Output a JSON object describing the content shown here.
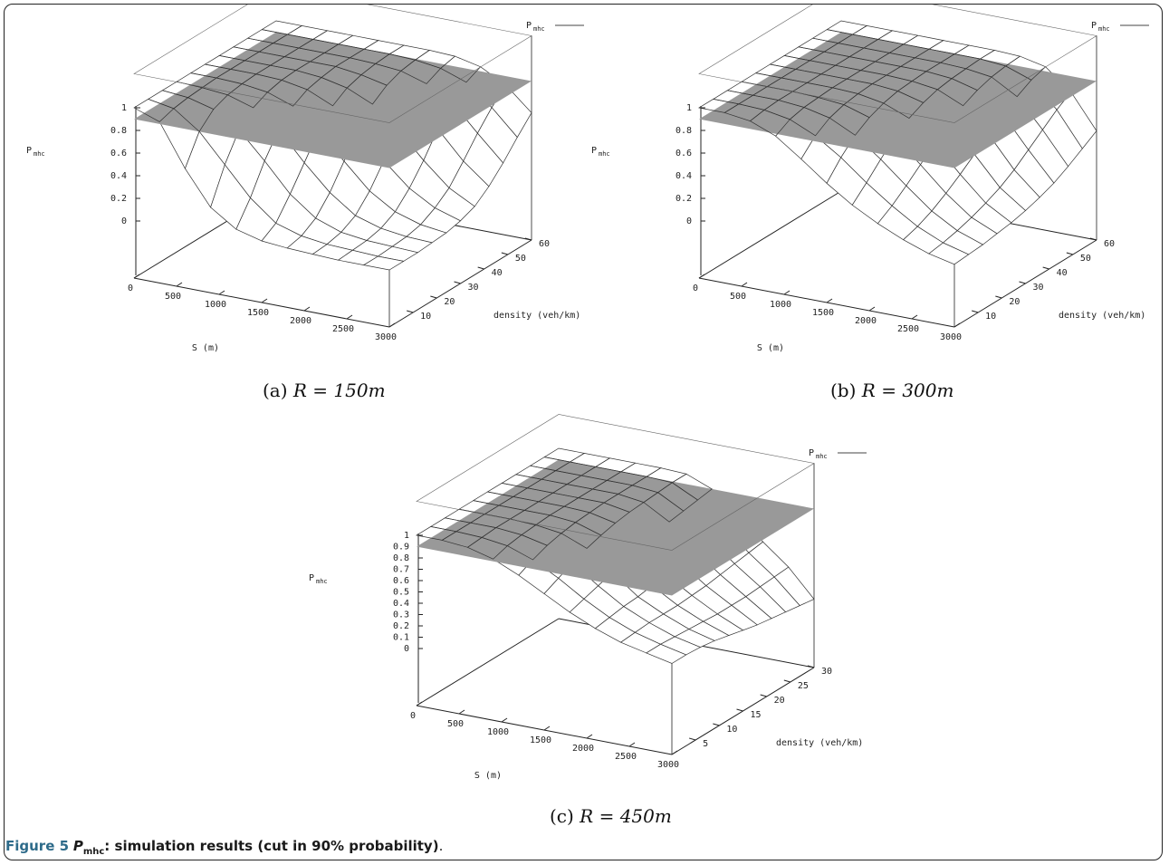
{
  "figure": {
    "label": "Figure 5",
    "symbol": "P",
    "symbol_sub": "mhc",
    "text": ": simulation results (cut in 90% probability)",
    "end": "."
  },
  "chart_data": [
    {
      "type": "surface3d",
      "caption": "(a)",
      "caption_math": "R = 150m",
      "zlabel": "P",
      "zlabel_sub": "mhc",
      "xlabel": "S (m)",
      "ylabel": "density (veh/km)",
      "legend": "P",
      "legend_sub": "mhc",
      "legend_position": "top-right",
      "plane_z": 0.9,
      "x": [
        0,
        300,
        600,
        900,
        1200,
        1500,
        1800,
        2100,
        2400,
        2700,
        3000
      ],
      "y": [
        0,
        6,
        12,
        18,
        24,
        30,
        36,
        42,
        48,
        54,
        60
      ],
      "xticks": [
        "0",
        "500",
        "1000",
        "1500",
        "2000",
        "2500",
        "3000"
      ],
      "yticks": [
        "10",
        "20",
        "30",
        "40",
        "50",
        "60"
      ],
      "zticks": [
        "0",
        "0.2",
        "0.4",
        "0.6",
        "0.8",
        "1"
      ],
      "xlim": [
        0,
        3000
      ],
      "ylim": [
        0,
        60
      ],
      "zlim": [
        0,
        1
      ],
      "z": [
        [
          1,
          1,
          1,
          1,
          1,
          1,
          1,
          1,
          1,
          1,
          1
        ],
        [
          0.92,
          0.96,
          0.98,
          0.99,
          1,
          1,
          1,
          1,
          1,
          1,
          1
        ],
        [
          0.55,
          0.8,
          0.92,
          0.97,
          0.99,
          1,
          1,
          1,
          1,
          1,
          1
        ],
        [
          0.25,
          0.55,
          0.78,
          0.9,
          0.96,
          0.99,
          1,
          1,
          1,
          1,
          1
        ],
        [
          0.1,
          0.3,
          0.55,
          0.75,
          0.88,
          0.95,
          0.98,
          1,
          1,
          1,
          1
        ],
        [
          0.04,
          0.12,
          0.3,
          0.5,
          0.7,
          0.85,
          0.93,
          0.97,
          0.99,
          1,
          1
        ],
        [
          0.02,
          0.05,
          0.13,
          0.28,
          0.48,
          0.68,
          0.83,
          0.92,
          0.97,
          0.99,
          1
        ],
        [
          0.01,
          0.02,
          0.05,
          0.12,
          0.26,
          0.45,
          0.65,
          0.8,
          0.9,
          0.96,
          0.99
        ],
        [
          0,
          0.01,
          0.02,
          0.05,
          0.12,
          0.25,
          0.42,
          0.62,
          0.78,
          0.88,
          0.94
        ],
        [
          0,
          0,
          0.01,
          0.02,
          0.05,
          0.12,
          0.22,
          0.38,
          0.55,
          0.7,
          0.82
        ],
        [
          0,
          0,
          0,
          0.01,
          0.02,
          0.05,
          0.1,
          0.2,
          0.33,
          0.48,
          0.62
        ]
      ]
    },
    {
      "type": "surface3d",
      "caption": "(b)",
      "caption_math": "R = 300m",
      "zlabel": "P",
      "zlabel_sub": "mhc",
      "xlabel": "S (m)",
      "ylabel": "density (veh/km)",
      "legend": "P",
      "legend_sub": "mhc",
      "legend_position": "top-right",
      "plane_z": 0.9,
      "x": [
        0,
        300,
        600,
        900,
        1200,
        1500,
        1800,
        2100,
        2400,
        2700,
        3000
      ],
      "y": [
        0,
        6,
        12,
        18,
        24,
        30,
        36,
        42,
        48,
        54,
        60
      ],
      "xticks": [
        "0",
        "500",
        "1000",
        "1500",
        "2000",
        "2500",
        "3000"
      ],
      "yticks": [
        "10",
        "20",
        "30",
        "40",
        "50",
        "60"
      ],
      "zticks": [
        "0",
        "0.2",
        "0.4",
        "0.6",
        "0.8",
        "1"
      ],
      "xlim": [
        0,
        3000
      ],
      "ylim": [
        0,
        60
      ],
      "zlim": [
        0,
        1
      ],
      "z": [
        [
          1,
          1,
          1,
          1,
          1,
          1,
          1,
          1,
          1,
          1,
          1
        ],
        [
          1,
          1,
          1,
          1,
          1,
          1,
          1,
          1,
          1,
          1,
          1
        ],
        [
          0.97,
          0.99,
          1,
          1,
          1,
          1,
          1,
          1,
          1,
          1,
          1
        ],
        [
          0.88,
          0.95,
          0.98,
          0.99,
          1,
          1,
          1,
          1,
          1,
          1,
          1
        ],
        [
          0.72,
          0.85,
          0.93,
          0.97,
          0.99,
          1,
          1,
          1,
          1,
          1,
          1
        ],
        [
          0.55,
          0.7,
          0.82,
          0.9,
          0.95,
          0.98,
          0.99,
          1,
          1,
          1,
          1
        ],
        [
          0.4,
          0.52,
          0.65,
          0.77,
          0.86,
          0.92,
          0.96,
          0.98,
          0.99,
          1,
          1
        ],
        [
          0.28,
          0.36,
          0.46,
          0.57,
          0.68,
          0.78,
          0.86,
          0.92,
          0.96,
          0.98,
          0.99
        ],
        [
          0.18,
          0.22,
          0.28,
          0.36,
          0.45,
          0.55,
          0.65,
          0.75,
          0.83,
          0.9,
          0.94
        ],
        [
          0.1,
          0.12,
          0.15,
          0.19,
          0.24,
          0.3,
          0.38,
          0.48,
          0.58,
          0.68,
          0.76
        ],
        [
          0.05,
          0.06,
          0.07,
          0.09,
          0.11,
          0.14,
          0.18,
          0.23,
          0.3,
          0.38,
          0.46
        ]
      ]
    },
    {
      "type": "surface3d",
      "caption": "(c)",
      "caption_math": "R = 450m",
      "zlabel": "P",
      "zlabel_sub": "mhc",
      "xlabel": "S (m)",
      "ylabel": "density (veh/km)",
      "legend": "P",
      "legend_sub": "mhc",
      "legend_position": "top-right",
      "plane_z": 0.9,
      "x": [
        0,
        300,
        600,
        900,
        1200,
        1500,
        1800,
        2100,
        2400,
        2700,
        3000
      ],
      "y": [
        0,
        3,
        6,
        9,
        12,
        15,
        18,
        21,
        24,
        27,
        30
      ],
      "xticks": [
        "0",
        "500",
        "1000",
        "1500",
        "2000",
        "2500",
        "3000"
      ],
      "yticks": [
        "5",
        "10",
        "15",
        "20",
        "25",
        "30"
      ],
      "zticks": [
        "0",
        "0.1",
        "0.2",
        "0.3",
        "0.4",
        "0.5",
        "0.6",
        "0.7",
        "0.8",
        "0.9",
        "1"
      ],
      "xlim": [
        0,
        3000
      ],
      "ylim": [
        0,
        30
      ],
      "zlim": [
        0,
        1
      ],
      "z": [
        [
          1,
          1,
          1,
          1,
          1,
          1,
          1,
          1,
          1,
          1,
          1
        ],
        [
          1,
          1,
          1,
          1,
          1,
          1,
          1,
          1,
          1,
          1,
          1
        ],
        [
          0.98,
          0.99,
          1,
          1,
          1,
          1,
          1,
          1,
          1,
          1,
          1
        ],
        [
          0.92,
          0.96,
          0.98,
          0.99,
          1,
          1,
          1,
          1,
          1,
          1,
          1
        ],
        [
          0.82,
          0.88,
          0.93,
          0.96,
          0.98,
          0.99,
          1,
          1,
          1,
          1,
          1
        ],
        [
          0.7,
          0.76,
          0.82,
          0.87,
          0.91,
          0.94,
          0.96,
          0.97,
          0.98,
          0.99,
          0.99
        ],
        [
          0.58,
          0.62,
          0.66,
          0.7,
          0.74,
          0.78,
          0.81,
          0.84,
          0.86,
          0.88,
          0.9
        ],
        [
          0.48,
          0.5,
          0.52,
          0.53,
          0.55,
          0.57,
          0.6,
          0.63,
          0.66,
          0.7,
          0.72
        ],
        [
          0.4,
          0.41,
          0.42,
          0.42,
          0.42,
          0.43,
          0.44,
          0.46,
          0.48,
          0.5,
          0.52
        ],
        [
          0.35,
          0.35,
          0.34,
          0.33,
          0.32,
          0.31,
          0.31,
          0.31,
          0.32,
          0.33,
          0.34
        ],
        [
          0.3,
          0.3,
          0.29,
          0.27,
          0.24,
          0.21,
          0.18,
          0.16,
          0.14,
          0.12,
          0.1
        ]
      ]
    }
  ]
}
